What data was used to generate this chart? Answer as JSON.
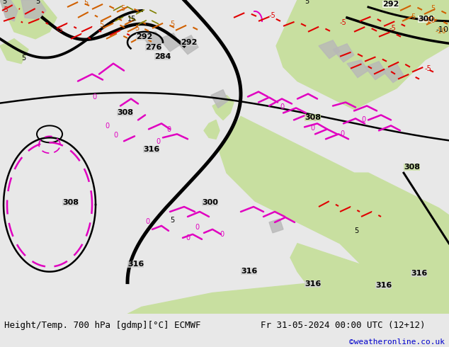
{
  "title_left": "Height/Temp. 700 hPa [gdmp][°C] ECMWF",
  "title_right": "Fr 31-05-2024 00:00 UTC (12+12)",
  "watermark": "©weatheronline.co.uk",
  "fig_width": 6.34,
  "fig_height": 4.9,
  "dpi": 100,
  "bottom_bar_color": "#e8e8e8",
  "bottom_text_color": "#000000",
  "watermark_color": "#0000cc",
  "font_size_label": 9,
  "font_size_watermark": 8,
  "bg_map_color": "#d8d8d8",
  "sea_color": "#d0d0d0",
  "land_green_light": "#c8dfa0",
  "land_green_mid": "#b0cf80",
  "contour_black": "#000000",
  "contour_pink": "#e000c0",
  "contour_red": "#e00000",
  "contour_orange": "#d06000",
  "contour_orange2": "#b08000"
}
